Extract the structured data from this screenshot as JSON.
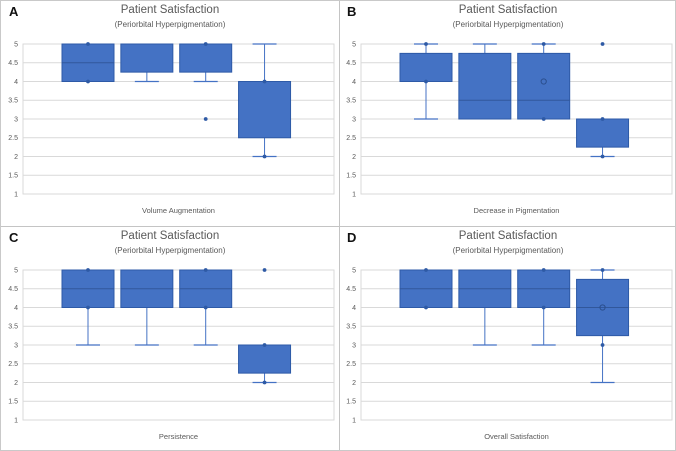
{
  "figure": {
    "background": "#ffffff",
    "divider_color": "#c4c4c4",
    "colors": {
      "box_fill": "#4472C4",
      "box_stroke": "#2E5AA7",
      "median_line": "#2F5597",
      "whisker": "#4472C4",
      "marker": "#2E5AA5",
      "mean_stroke": "#2B4F8E",
      "gridline": "#D9D9D9",
      "plot_border": "#D9D9D9",
      "tick_text": "#595959",
      "title_text": "#595959",
      "letter_text": "#111111"
    }
  },
  "chart_data": [
    {
      "type": "box",
      "letter": "A",
      "title": "Patient Satisfaction",
      "subtitle": "(Periorbital Hyperpigmentation)",
      "xlabel": "Volume Augmentation",
      "ylim": [
        1,
        5
      ],
      "yticks": [
        1,
        1.5,
        2,
        2.5,
        3,
        3.5,
        4,
        4.5,
        5
      ],
      "grid": true,
      "legend": null,
      "boxes": [
        {
          "q1": 4,
          "q3": 5,
          "median": 4.5,
          "whisker_low": null,
          "whisker_high": null,
          "mean": null,
          "points": [
            5,
            4
          ]
        },
        {
          "q1": 4.25,
          "q3": 5,
          "median": null,
          "whisker_low": 4,
          "whisker_high": null,
          "mean": null,
          "points": []
        },
        {
          "q1": 4.25,
          "q3": 5,
          "median": null,
          "whisker_low": 4,
          "whisker_high": null,
          "mean": null,
          "points": [
            5,
            3
          ]
        },
        {
          "q1": 2.5,
          "q3": 4,
          "median": null,
          "whisker_low": 2,
          "whisker_high": 5,
          "mean": null,
          "points": [
            4,
            2
          ]
        }
      ]
    },
    {
      "type": "box",
      "letter": "B",
      "title": "Patient Satisfaction",
      "subtitle": "(Periorbital Hyperpigmentation)",
      "xlabel": "Decrease in Pigmentation",
      "ylim": [
        1,
        5
      ],
      "yticks": [
        1,
        1.5,
        2,
        2.5,
        3,
        3.5,
        4,
        4.5,
        5
      ],
      "grid": true,
      "legend": null,
      "boxes": [
        {
          "q1": 4,
          "q3": 4.75,
          "median": null,
          "whisker_low": 3,
          "whisker_high": 5,
          "mean": null,
          "points": [
            5,
            4
          ]
        },
        {
          "q1": 3,
          "q3": 4.75,
          "median": 3.5,
          "whisker_low": null,
          "whisker_high": 5,
          "mean": null,
          "points": []
        },
        {
          "q1": 3,
          "q3": 4.75,
          "median": 3.5,
          "whisker_low": null,
          "whisker_high": 5,
          "mean": 4,
          "points": [
            5,
            3
          ]
        },
        {
          "q1": 2.25,
          "q3": 3,
          "median": null,
          "whisker_low": 2,
          "whisker_high": null,
          "mean": null,
          "points": [
            5,
            3,
            2
          ]
        }
      ]
    },
    {
      "type": "box",
      "letter": "C",
      "title": "Patient Satisfaction",
      "subtitle": "(Periorbital Hyperpigmentation)",
      "xlabel": "Persistence",
      "ylim": [
        1,
        5
      ],
      "yticks": [
        1,
        1.5,
        2,
        2.5,
        3,
        3.5,
        4,
        4.5,
        5
      ],
      "grid": true,
      "legend": null,
      "boxes": [
        {
          "q1": 4,
          "q3": 5,
          "median": 4.5,
          "whisker_low": 3,
          "whisker_high": null,
          "mean": null,
          "points": [
            5,
            4
          ]
        },
        {
          "q1": 4,
          "q3": 5,
          "median": 4.5,
          "whisker_low": 3,
          "whisker_high": null,
          "mean": null,
          "points": []
        },
        {
          "q1": 4,
          "q3": 5,
          "median": 4.5,
          "whisker_low": 3,
          "whisker_high": null,
          "mean": null,
          "points": [
            5,
            4
          ]
        },
        {
          "q1": 2.25,
          "q3": 3,
          "median": null,
          "whisker_low": 2,
          "whisker_high": null,
          "mean": null,
          "points": [
            5,
            3,
            2
          ]
        }
      ]
    },
    {
      "type": "box",
      "letter": "D",
      "title": "Patient Satisfaction",
      "subtitle": "(Periorbital Hyperpigmentation)",
      "xlabel": "Overall Satisfaction",
      "ylim": [
        1,
        5
      ],
      "yticks": [
        1,
        1.5,
        2,
        2.5,
        3,
        3.5,
        4,
        4.5,
        5
      ],
      "grid": true,
      "legend": null,
      "boxes": [
        {
          "q1": 4,
          "q3": 5,
          "median": 4.5,
          "whisker_low": null,
          "whisker_high": null,
          "mean": null,
          "points": [
            5,
            4
          ]
        },
        {
          "q1": 4,
          "q3": 5,
          "median": 4.5,
          "whisker_low": 3,
          "whisker_high": null,
          "mean": null,
          "points": []
        },
        {
          "q1": 4,
          "q3": 5,
          "median": 4.5,
          "whisker_low": 3,
          "whisker_high": null,
          "mean": null,
          "points": [
            5,
            4
          ]
        },
        {
          "q1": 3.25,
          "q3": 4.75,
          "median": 4,
          "whisker_low": 2,
          "whisker_high": 5,
          "mean": 4,
          "points": [
            5,
            3
          ]
        }
      ]
    }
  ]
}
